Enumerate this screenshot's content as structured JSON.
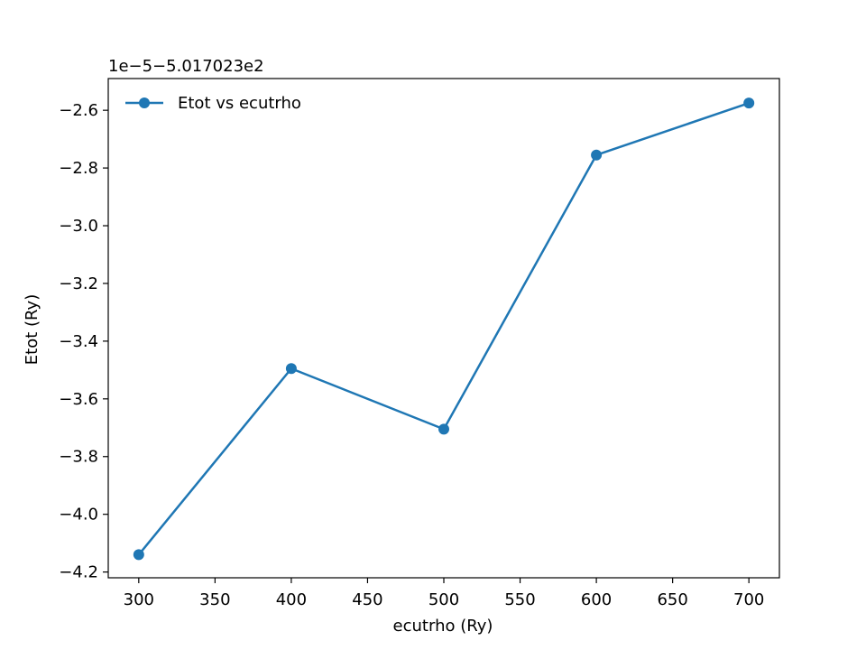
{
  "chart_data": {
    "type": "line",
    "title": "",
    "xlabel": "ecutrho (Ry)",
    "ylabel": "Etot (Ry)",
    "y_offset_text": "1e−5−5.017023e2",
    "xlim": [
      280,
      720
    ],
    "ylim": [
      -4.22,
      -2.49
    ],
    "x_ticks": [
      300,
      350,
      400,
      450,
      500,
      550,
      600,
      650,
      700
    ],
    "x_tick_labels": [
      "300",
      "350",
      "400",
      "450",
      "500",
      "550",
      "600",
      "650",
      "700"
    ],
    "y_ticks": [
      -4.2,
      -4.0,
      -3.8,
      -3.6,
      -3.4,
      -3.2,
      -3.0,
      -2.8,
      -2.6
    ],
    "y_tick_labels": [
      "−4.2",
      "−4.0",
      "−3.8",
      "−3.6",
      "−3.4",
      "−3.2",
      "−3.0",
      "−2.8",
      "−2.6"
    ],
    "grid": false,
    "legend_position": "top-left",
    "series": [
      {
        "name": "Etot vs ecutrho",
        "color": "#1f77b4",
        "marker": "circle",
        "x": [
          300,
          400,
          500,
          600,
          700
        ],
        "y": [
          -4.14,
          -3.495,
          -3.705,
          -2.755,
          -2.575
        ]
      }
    ]
  }
}
